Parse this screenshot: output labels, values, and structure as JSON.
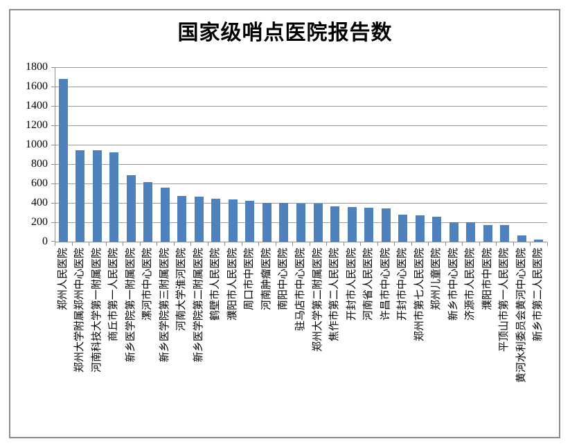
{
  "chart_data": {
    "type": "bar",
    "title": "国家级哨点医院报告数",
    "xlabel": "",
    "ylabel": "",
    "categories": [
      "郑州人民医院",
      "郑州大学附属郑州中心医院",
      "河南科技大学第一附属医院",
      "商丘市第一人民医院",
      "新乡医学院第一附属医院",
      "漯河市中心医院",
      "新乡医学院第三附属医院",
      "河南大学淮河医院",
      "新乡医学院第二附属医院",
      "鹤壁市人民医院",
      "濮阳市人民医院",
      "周口市中医院",
      "河南肿瘤医院",
      "南阳中心医院",
      "驻马店市中心医院",
      "郑州大学第二附属医院",
      "焦作市第二人民医院",
      "开封市人民医院",
      "河南省人民医院",
      "许昌市中心医院",
      "开封市中心医院",
      "郑州市第七人民医院",
      "郑州儿童医院",
      "新乡市中心医院",
      "济源市人民医院",
      "濮阳市中医院",
      "平顶山市第一人民医院",
      "黄河水利委员会黄河中心医院",
      "新乡市第二人民医院"
    ],
    "values": [
      1680,
      940,
      940,
      925,
      685,
      615,
      560,
      475,
      465,
      445,
      435,
      425,
      400,
      400,
      395,
      390,
      365,
      355,
      350,
      340,
      280,
      275,
      255,
      200,
      200,
      175,
      170,
      65,
      25
    ],
    "ylim": [
      0,
      1800
    ],
    "ytick_interval": 200,
    "yticks": [
      0,
      200,
      400,
      600,
      800,
      1000,
      1200,
      1400,
      1600,
      1800
    ],
    "grid": true,
    "legend_position": "none",
    "x_label_rotation_deg": 90,
    "bar_color": "#4F81BD"
  },
  "colors": {
    "bar": "#4F81BD",
    "gridline": "#9C9C9C",
    "axis": "#8C8C8C",
    "frame_border": "#8A8A8A",
    "background": "#FFFFFF",
    "text": "#000000"
  }
}
